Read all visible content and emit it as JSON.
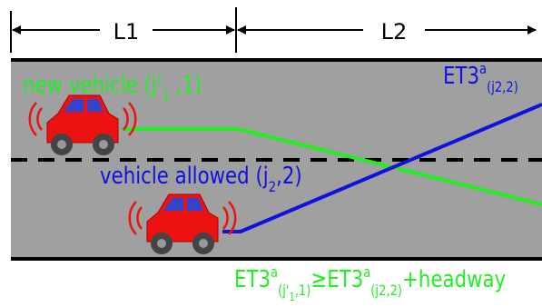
{
  "dimension_labels": {
    "l1": "L1",
    "l2": "L2"
  },
  "labels": {
    "new_vehicle": [
      {
        "text": "new vehicle (j'"
      },
      {
        "sub": "1"
      },
      {
        "text": " ,1)"
      }
    ],
    "et3_j2": [
      {
        "text": "ET3"
      },
      {
        "sup": "a"
      },
      {
        "sub": "(j2,2)"
      }
    ],
    "vehicle_allowed": [
      {
        "text": "vehicle allowed (j"
      },
      {
        "sub": "2"
      },
      {
        "text": ",2)"
      }
    ],
    "condition": [
      {
        "text": "ET3"
      },
      {
        "sup": "a"
      },
      {
        "sub": "(j'"
      },
      {
        "subsub": "1"
      },
      {
        "sub": ",1)"
      },
      {
        "text": "≥ET3"
      },
      {
        "sup": "a"
      },
      {
        "sub": "(j2,2)"
      },
      {
        "text": "+headway"
      }
    ]
  }
}
